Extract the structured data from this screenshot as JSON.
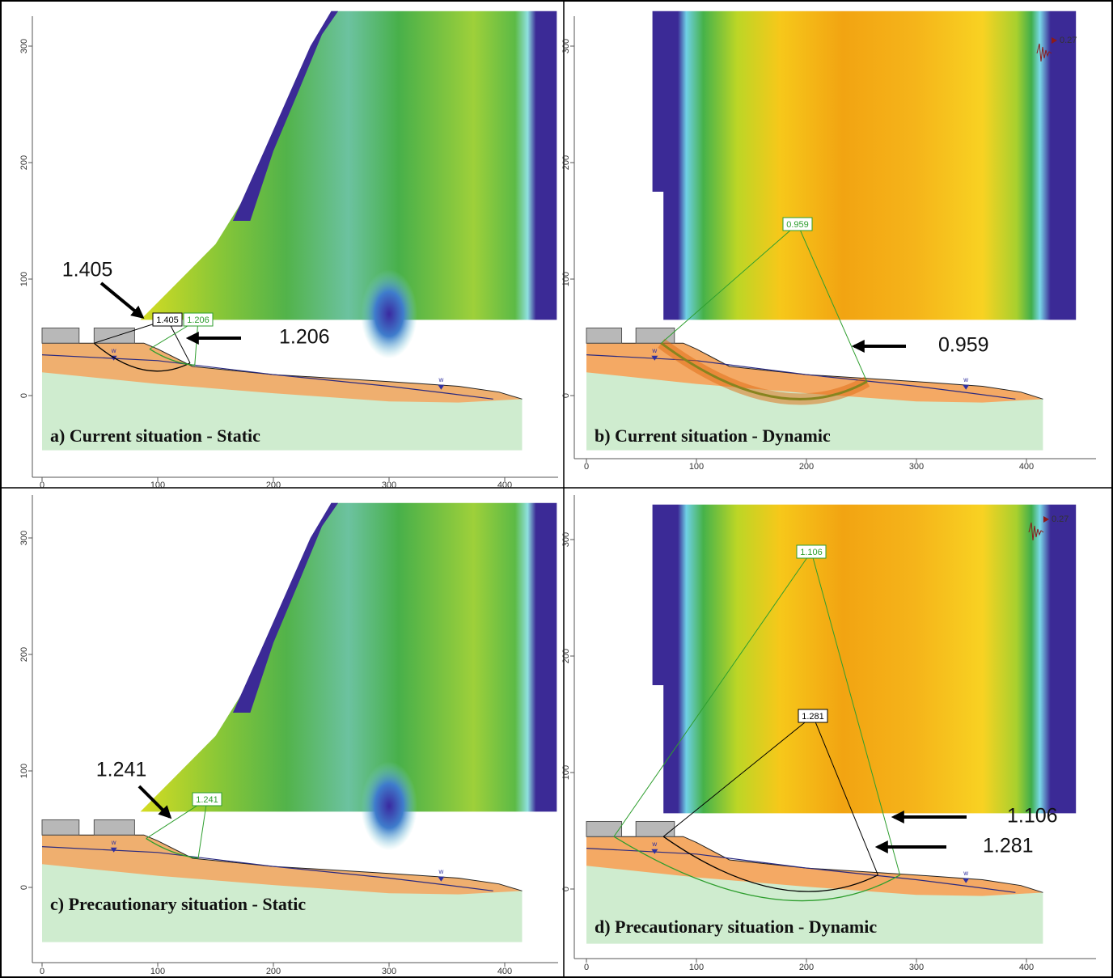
{
  "panels": [
    {
      "caption": "a) Current situation - Static",
      "kind": "static",
      "xticks": [
        0,
        100,
        200,
        300,
        400
      ],
      "yticks": [
        0,
        100,
        200,
        300
      ],
      "water_marker": "w",
      "fs_labels": [
        {
          "text": "1.405",
          "color": "#000000"
        },
        {
          "text": "1.206",
          "color": "#2e9e2e"
        }
      ],
      "callouts": [
        "1.405",
        "1.206"
      ]
    },
    {
      "caption": "b) Current situation - Dynamic",
      "kind": "dynamic",
      "xticks": [
        0,
        100,
        200,
        300,
        400
      ],
      "yticks": [
        0,
        100,
        200,
        300
      ],
      "water_marker": "w",
      "seismic": "0.27",
      "fs_labels": [
        {
          "text": "0.959",
          "color": "#2e9e2e"
        }
      ],
      "callouts": [
        "0.959"
      ]
    },
    {
      "caption": "c) Precautionary situation - Static",
      "kind": "static",
      "xticks": [
        0,
        100,
        200,
        300,
        400
      ],
      "yticks": [
        0,
        100,
        200,
        300
      ],
      "water_marker": "w",
      "fs_labels": [
        {
          "text": "1.241",
          "color": "#2e9e2e"
        }
      ],
      "callouts": [
        "1.241"
      ]
    },
    {
      "caption": "d) Precautionary situation - Dynamic",
      "kind": "dynamic",
      "xticks": [
        0,
        100,
        200,
        300,
        400
      ],
      "yticks": [
        0,
        100,
        200,
        300
      ],
      "water_marker": "w",
      "seismic": "0.27",
      "fs_labels": [
        {
          "text": "1.106",
          "color": "#2e9e2e"
        },
        {
          "text": "1.281",
          "color": "#000000"
        }
      ],
      "callouts": [
        "1.106",
        "1.281"
      ]
    }
  ]
}
